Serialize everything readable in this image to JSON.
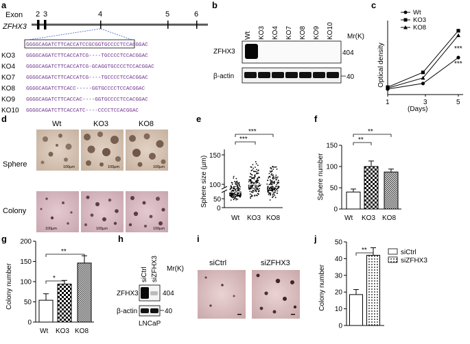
{
  "panel_letters": [
    "a",
    "b",
    "c",
    "d",
    "e",
    "f",
    "g",
    "h",
    "i",
    "j"
  ],
  "panel_a": {
    "exon_label": "Exon",
    "gene_label": "ZFHX3",
    "exon_numbers": [
      "2",
      "3",
      "4",
      "5",
      "6"
    ],
    "clone_labels": [
      "KO3",
      "KO4",
      "KO7",
      "KO8",
      "KO9",
      "KO10"
    ],
    "ref_seq": "GGGGCAGATCTTCACCATCCGCGGTGCCCCTCCACGGAC",
    "sequences": [
      "GGGGCAGATCTTCACCATCG----TGCCCCTCCACGGAC",
      "GGGGCAGATCTTCACCATCG-GCAGGTGCCCCTCCACGGAC",
      "GGGGCAGATCTTCACCATCG----TGCCCCTCCACGGAC",
      "GGGGCAGATCTTCACC-----GGTGCCCCTCCACGGAC",
      "GGGGCAGATCTTCACCAC----GGTGCCCCTCCACGGAC",
      "GGGGCAGATCTTCACCATC----CCCCTCCACGGAC"
    ]
  },
  "panel_b": {
    "lanes": [
      "Wt",
      "KO3",
      "KO4",
      "KO7",
      "KO8",
      "KO9",
      "KO10"
    ],
    "mr_label": "Mr(K)",
    "rows": [
      {
        "label": "ZFHX3",
        "marker": "404"
      },
      {
        "label": "β-actin",
        "marker": "40"
      }
    ]
  },
  "panel_c": {
    "chart_data": {
      "type": "line",
      "xlabel": "(Days)",
      "ylabel": "Optical density",
      "x": [
        1,
        3,
        5
      ],
      "xticks": [
        "1",
        "3",
        "5"
      ],
      "series": [
        {
          "name": "Wt",
          "marker": "circle",
          "values": [
            0.12,
            0.24,
            0.8
          ]
        },
        {
          "name": "KO3",
          "marker": "square",
          "values": [
            0.16,
            0.48,
            1.38
          ]
        },
        {
          "name": "KO8",
          "marker": "triangle",
          "values": [
            0.14,
            0.36,
            1.28
          ]
        }
      ],
      "significance": [
        "***",
        "***"
      ],
      "ylim": [
        0,
        1.6
      ]
    }
  },
  "panel_d": {
    "columns": [
      "Wt",
      "KO3",
      "KO8"
    ],
    "rows": [
      "Sphere",
      "Colony"
    ],
    "scale_bar": "100µm"
  },
  "panel_e": {
    "chart_data": {
      "type": "scatter",
      "ylabel": "Sphere size (µm)",
      "categories": [
        "Wt",
        "KO3",
        "KO8"
      ],
      "means": [
        87,
        100,
        98
      ],
      "spread": [
        [
          70,
          120
        ],
        [
          72,
          150
        ],
        [
          70,
          148
        ]
      ],
      "yticks": [
        "0",
        "50",
        "100",
        "150"
      ],
      "significance": [
        "***",
        "***"
      ],
      "axis_break": true
    }
  },
  "panel_f": {
    "chart_data": {
      "type": "bar",
      "ylabel": "Sphere number",
      "categories": [
        "Wt",
        "KO3",
        "KO8"
      ],
      "values": [
        40,
        100,
        87
      ],
      "errors": [
        7,
        13,
        7
      ],
      "ylim": [
        0,
        150
      ],
      "yticks": [
        "0",
        "50",
        "100",
        "150"
      ],
      "significance": [
        "**",
        "**"
      ]
    }
  },
  "panel_g": {
    "chart_data": {
      "type": "bar",
      "ylabel": "Colony number",
      "categories": [
        "Wt",
        "KO3",
        "KO8"
      ],
      "values": [
        54,
        94,
        146
      ],
      "errors": [
        16,
        9,
        18
      ],
      "ylim": [
        0,
        200
      ],
      "yticks": [
        "0",
        "50",
        "100",
        "150",
        "200"
      ],
      "significance": [
        "*",
        "**"
      ]
    }
  },
  "panel_h": {
    "lanes": [
      "siCtrl",
      "siZFHX3"
    ],
    "mr_label": "Mr(K)",
    "rows": [
      {
        "label": "ZFHX3",
        "marker": "404"
      },
      {
        "label": "β-actin",
        "marker": "40"
      }
    ],
    "cell_line": "LNCaP"
  },
  "panel_i": {
    "labels": [
      "siCtrl",
      "siZFHX3"
    ]
  },
  "panel_j": {
    "chart_data": {
      "type": "bar",
      "ylabel": "Colony number",
      "categories": [
        "siCtrl",
        "siZFHX3"
      ],
      "values": [
        18.5,
        42
      ],
      "errors": [
        3,
        4.5
      ],
      "ylim": [
        0,
        50
      ],
      "yticks": [
        "0",
        "10",
        "20",
        "30",
        "40",
        "50"
      ],
      "legend": [
        "siCtrl",
        "siZFHX3"
      ],
      "significance": [
        "**"
      ]
    }
  }
}
